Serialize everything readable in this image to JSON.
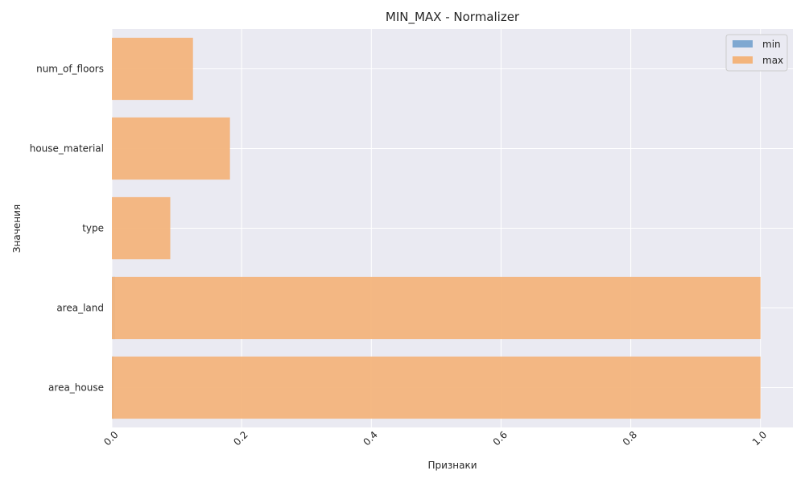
{
  "chart_data": {
    "type": "bar",
    "orientation": "horizontal",
    "title": "MIN_MAX - Normalizer",
    "xlabel": "Признаки",
    "ylabel": "Значения",
    "categories": [
      "area_house",
      "area_land",
      "type",
      "house_material",
      "num_of_floors"
    ],
    "series": [
      {
        "name": "min",
        "values": [
          0.003,
          0.005,
          0.0,
          0.0,
          0.0
        ],
        "color": "#7fa8d1"
      },
      {
        "name": "max",
        "values": [
          1.0,
          1.0,
          0.09,
          0.182,
          0.125
        ],
        "color": "#f3b47c"
      }
    ],
    "xlim": [
      0.0,
      1.05
    ],
    "xticks": [
      0.0,
      0.2,
      0.4,
      0.6,
      0.8,
      1.0
    ],
    "xtick_labels": [
      "0.0",
      "0.2",
      "0.4",
      "0.6",
      "0.8",
      "1.0"
    ],
    "xtick_rotation": 45,
    "grid": true,
    "legend_position": "top-right",
    "colors": {
      "background": "#eaeaf2",
      "grid": "#ffffff",
      "text": "#262626"
    }
  }
}
